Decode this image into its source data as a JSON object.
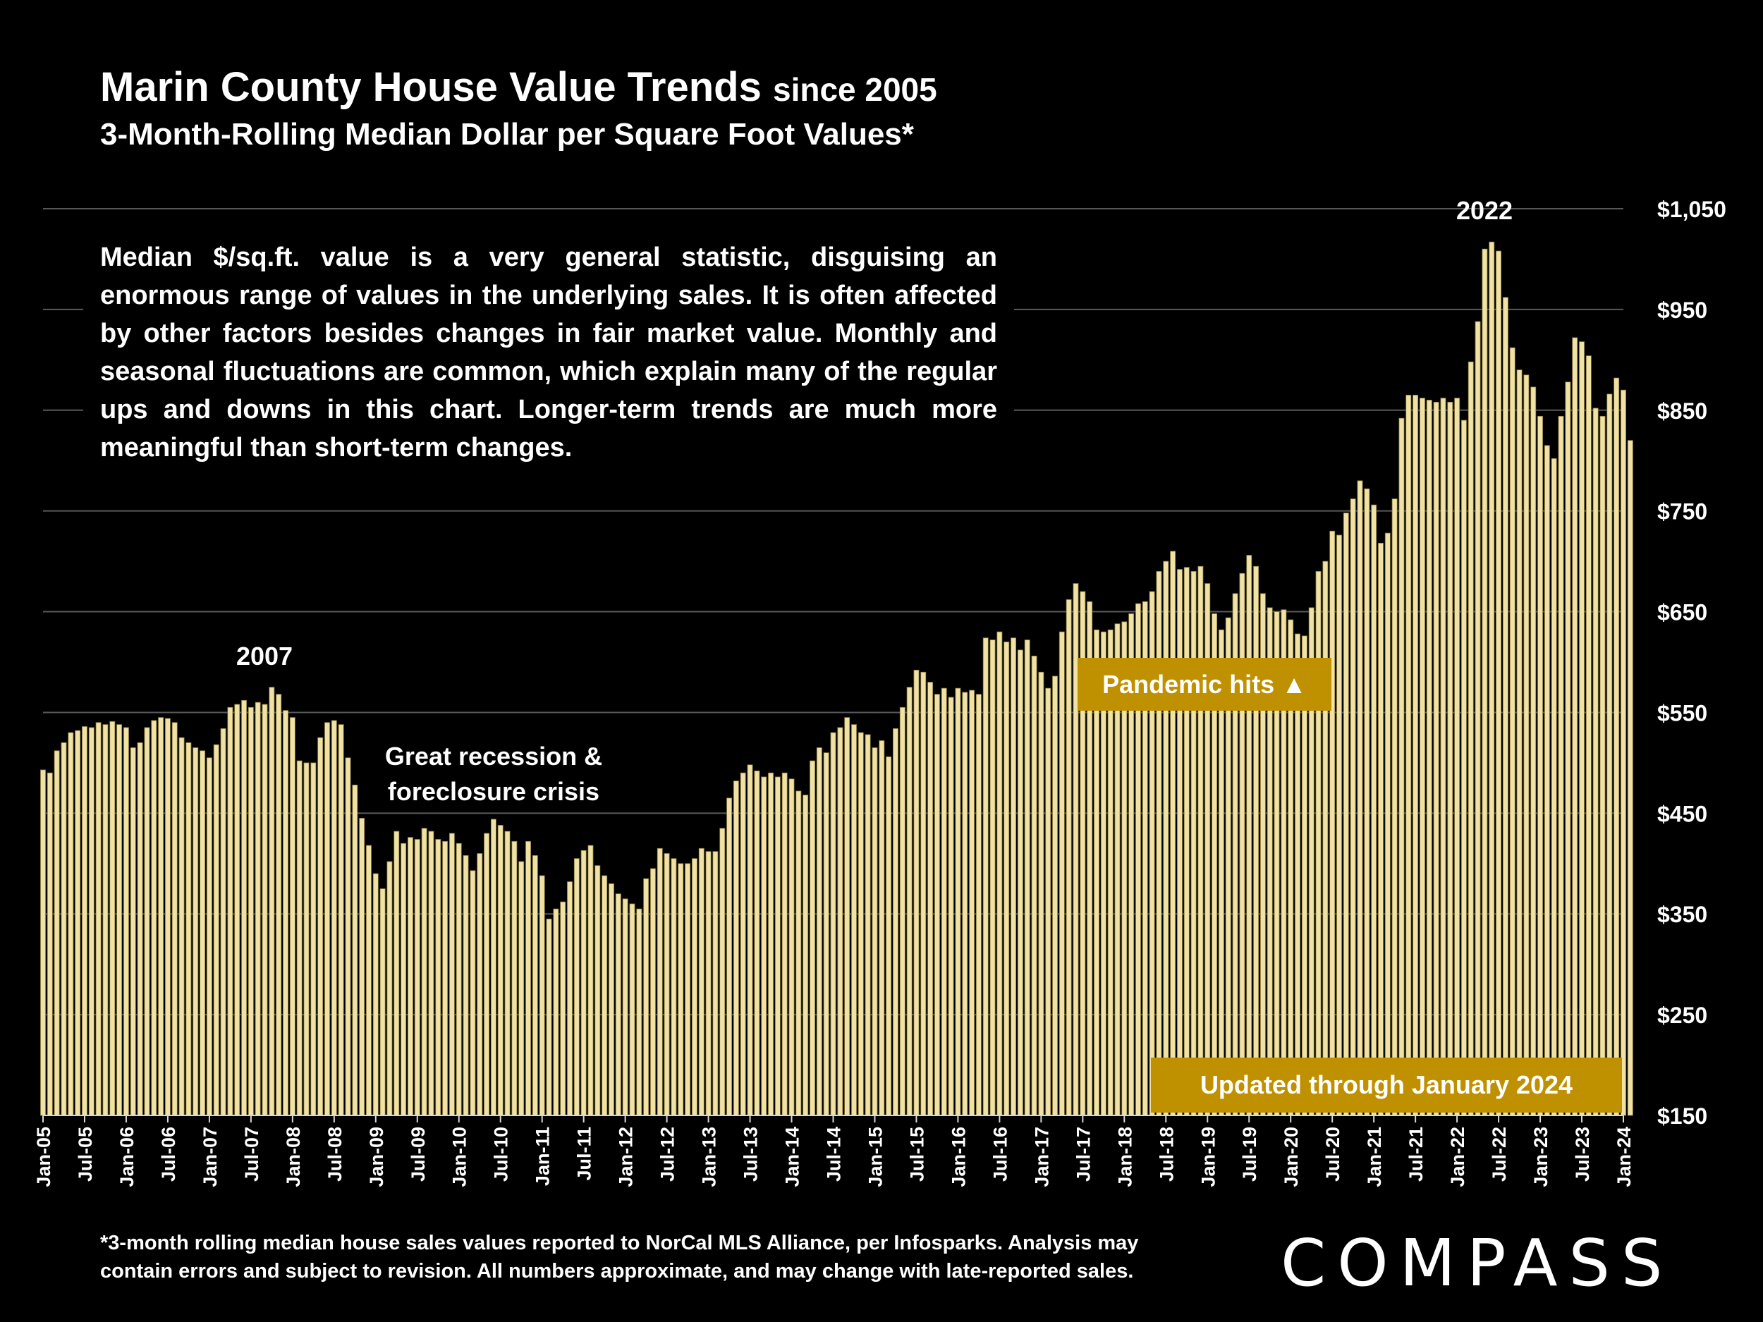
{
  "header": {
    "title": "Marin County House Value Trends",
    "title_suffix": "since 2005",
    "subtitle": "3-Month-Rolling Median Dollar per Square Foot Values*"
  },
  "note": "Median $/sq.ft. value is a very general statistic, disguising an enormous range of values in the underlying sales. It is often affected by other factors besides changes in fair market value. Monthly and seasonal fluctuations are common, which explain many of the regular ups and downs in this chart. Longer-term trends are much more meaningful than short-term changes.",
  "annotations": {
    "peak_2007": "2007",
    "recession_line1": "Great recession &",
    "recession_line2": "foreclosure crisis",
    "pandemic": "Pandemic hits",
    "pandemic_arrow": "▲",
    "peak_2022": "2022",
    "updated": "Updated through January 2024"
  },
  "footnote_line1": "*3-month rolling median house sales values reported to NorCal MLS Alliance, per Infosparks. Analysis may",
  "footnote_line2": "contain errors and subject to revision. All numbers approximate, and may change with late-reported sales.",
  "logo": "COMPASS",
  "colors": {
    "background": "#000000",
    "bar": "#f0e2a4",
    "bar_edge": "#8a7a40",
    "box": "#bf9000",
    "grid": "#595959"
  },
  "chart_data": {
    "type": "bar",
    "title": "Marin County House Value Trends since 2005",
    "subtitle": "3-Month-Rolling Median Dollar per Square Foot Values*",
    "start_month": "Jan-05",
    "end_month": "Jan-24",
    "ylim": [
      150,
      1050
    ],
    "yticks": [
      150,
      250,
      350,
      450,
      550,
      650,
      750,
      850,
      950,
      1050
    ],
    "ytick_labels": [
      "$150",
      "$250",
      "$350",
      "$450",
      "$550",
      "$650",
      "$750",
      "$850",
      "$950",
      "$1,050"
    ],
    "x_tick_labels": [
      "Jan-05",
      "Jul-05",
      "Jan-06",
      "Jul-06",
      "Jan-07",
      "Jul-07",
      "Jan-08",
      "Jul-08",
      "Jan-09",
      "Jul-09",
      "Jan-10",
      "Jul-10",
      "Jan-11",
      "Jul-11",
      "Jan-12",
      "Jul-12",
      "Jan-13",
      "Jul-13",
      "Jan-14",
      "Jul-14",
      "Jan-15",
      "Jul-15",
      "Jan-16",
      "Jul-16",
      "Jan-17",
      "Jul-17",
      "Jan-18",
      "Jul-18",
      "Jan-19",
      "Jul-19",
      "Jan-20",
      "Jul-20",
      "Jan-21",
      "Jul-21",
      "Jan-22",
      "Jul-22",
      "Jan-23",
      "Jul-23",
      "Jan-24"
    ],
    "values": [
      493,
      490,
      512,
      520,
      530,
      532,
      536,
      535,
      540,
      538,
      541,
      538,
      535,
      515,
      520,
      535,
      542,
      545,
      544,
      540,
      525,
      520,
      515,
      512,
      505,
      518,
      534,
      555,
      558,
      562,
      555,
      560,
      558,
      575,
      568,
      552,
      545,
      502,
      500,
      500,
      525,
      540,
      542,
      538,
      505,
      478,
      445,
      418,
      390,
      375,
      402,
      432,
      420,
      426,
      424,
      435,
      432,
      424,
      422,
      430,
      420,
      408,
      393,
      410,
      430,
      444,
      438,
      432,
      422,
      402,
      422,
      408,
      388,
      345,
      355,
      362,
      382,
      405,
      413,
      418,
      398,
      388,
      380,
      370,
      365,
      360,
      355,
      385,
      395,
      415,
      410,
      405,
      400,
      400,
      405,
      415,
      412,
      412,
      435,
      465,
      482,
      490,
      498,
      492,
      486,
      490,
      486,
      490,
      484,
      472,
      468,
      502,
      515,
      510,
      530,
      535,
      545,
      538,
      530,
      528,
      515,
      522,
      506,
      534,
      555,
      575,
      592,
      590,
      580,
      568,
      574,
      565,
      574,
      570,
      572,
      568,
      624,
      622,
      630,
      620,
      624,
      612,
      622,
      606,
      590,
      574,
      586,
      630,
      662,
      678,
      670,
      660,
      632,
      630,
      632,
      638,
      640,
      648,
      658,
      660,
      670,
      690,
      700,
      710,
      692,
      694,
      690,
      695,
      678,
      648,
      632,
      644,
      668,
      688,
      706,
      695,
      668,
      654,
      650,
      652,
      642,
      628,
      626,
      654,
      690,
      700,
      730,
      726,
      748,
      762,
      780,
      772,
      756,
      718,
      728,
      762,
      842,
      865,
      865,
      862,
      860,
      858,
      862,
      858,
      862,
      840,
      898,
      938,
      1010,
      1017,
      1008,
      962,
      912,
      890,
      885,
      873,
      844,
      815,
      802,
      844,
      878,
      922,
      918,
      904,
      852,
      844,
      866,
      882,
      870,
      820
    ]
  }
}
